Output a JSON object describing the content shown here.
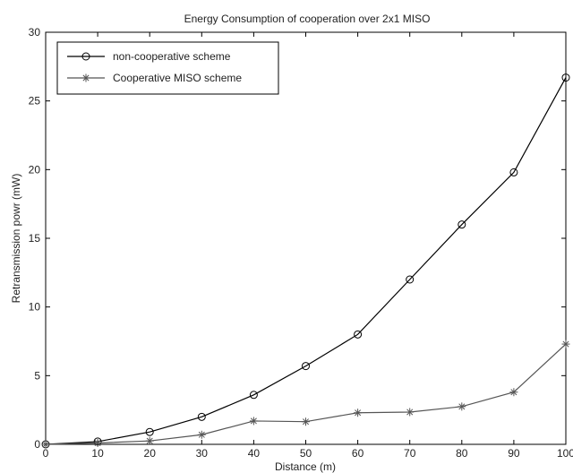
{
  "chart_data": {
    "type": "line",
    "title": "Energy Consumption of cooperation over 2x1 MISO",
    "xlabel": "Distance (m)",
    "ylabel": "Retransmission powr (mW)",
    "xlim": [
      0,
      100
    ],
    "ylim": [
      0,
      30
    ],
    "xticks": [
      0,
      10,
      20,
      30,
      40,
      50,
      60,
      70,
      80,
      90,
      100
    ],
    "yticks": [
      0,
      5,
      10,
      15,
      20,
      25,
      30
    ],
    "grid": false,
    "legend_position": "top-left",
    "x": [
      0,
      10,
      20,
      30,
      40,
      50,
      60,
      70,
      80,
      90,
      100
    ],
    "series": [
      {
        "name": "non-cooperative scheme",
        "marker": "circle",
        "color": "#000000",
        "values": [
          0,
          0.2,
          0.9,
          2.0,
          3.6,
          5.7,
          8.0,
          12.0,
          16.0,
          19.8,
          26.7
        ]
      },
      {
        "name": "Cooperative MISO scheme",
        "marker": "star",
        "color": "#555555",
        "values": [
          0,
          0.1,
          0.25,
          0.7,
          1.7,
          1.65,
          2.3,
          2.35,
          2.75,
          3.8,
          7.3
        ]
      }
    ]
  }
}
